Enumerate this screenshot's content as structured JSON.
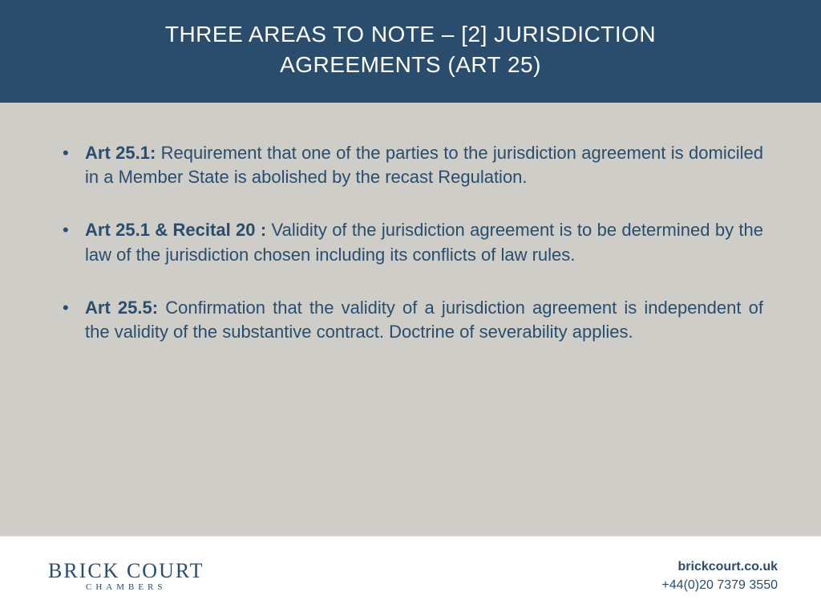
{
  "colors": {
    "header_bg": "#2a4d6e",
    "header_text": "#ffffff",
    "body_bg": "#cfcdc7",
    "body_text": "#2a4d6e",
    "footer_bg": "#ffffff",
    "footer_border": "#e6e3dd"
  },
  "header": {
    "title_line1": "THREE AREAS TO NOTE – [2] JURISDICTION",
    "title_line2": "AGREEMENTS (ART 25)"
  },
  "bullets": [
    {
      "lead": "Art 25.1:",
      "text": " Requirement that one of the parties to the jurisdiction agreement is domiciled in a Member State is abolished by the recast Regulation."
    },
    {
      "lead": "Art 25.1 & Recital 20 :",
      "text": " Validity of the jurisdiction agreement is to be determined by the law of the jurisdiction chosen including its conflicts of law rules."
    },
    {
      "lead": "Art 25.5:",
      "text": " Confirmation that the validity of a jurisdiction agreement is independent of the validity of the substantive contract.  Doctrine of severability applies."
    }
  ],
  "footer": {
    "logo_top": "BRICK COURT",
    "logo_bottom": "CHAMBERS",
    "url": "brickcourt.co.uk",
    "phone": "+44(0)20 7379 3550"
  }
}
